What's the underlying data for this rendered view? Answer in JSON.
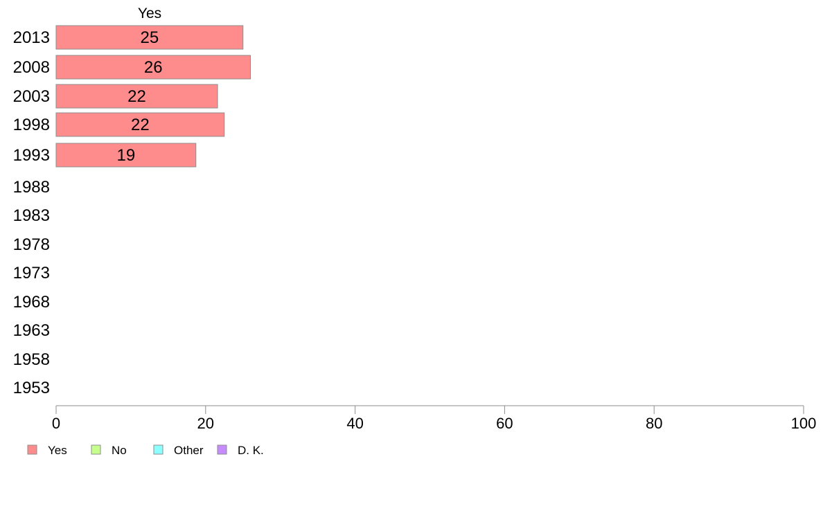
{
  "chart_data": {
    "type": "bar",
    "orientation": "horizontal",
    "stacked": true,
    "column_header": "Yes",
    "categories": [
      "2013",
      "2008",
      "2003",
      "1998",
      "1993",
      "1988",
      "1983",
      "1978",
      "1973",
      "1968",
      "1963",
      "1958",
      "1953"
    ],
    "series": [
      {
        "name": "Yes",
        "color": "#ff8c8c",
        "values": [
          25,
          26,
          21.6,
          22.5,
          18.7,
          null,
          null,
          null,
          null,
          null,
          null,
          null,
          null
        ],
        "labels": [
          "25",
          "26",
          "22",
          "22",
          "19",
          "",
          "",
          "",
          "",
          "",
          "",
          "",
          ""
        ]
      },
      {
        "name": "No",
        "color": "#c6ff8c",
        "values": [
          null,
          null,
          null,
          null,
          null,
          null,
          null,
          null,
          null,
          null,
          null,
          null,
          null
        ]
      },
      {
        "name": "Other",
        "color": "#8cffff",
        "values": [
          null,
          null,
          null,
          null,
          null,
          null,
          null,
          null,
          null,
          null,
          null,
          null,
          null
        ]
      },
      {
        "name": "D. K.",
        "color": "#c68cff",
        "values": [
          null,
          null,
          null,
          null,
          null,
          null,
          null,
          null,
          null,
          null,
          null,
          null,
          null
        ]
      }
    ],
    "xlim": [
      0,
      100
    ],
    "xticks": [
      "0",
      "20",
      "40",
      "60",
      "80",
      "100"
    ],
    "grid": false,
    "legend_position": "bottom-left"
  }
}
